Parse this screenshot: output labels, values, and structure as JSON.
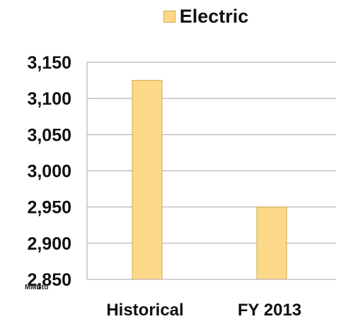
{
  "chart_data": {
    "type": "bar",
    "categories": [
      "Historical",
      "FY 2013"
    ],
    "series": [
      {
        "name": "Electric",
        "values": [
          3125,
          2950
        ]
      }
    ],
    "y_ticks": [
      "3,150",
      "3,100",
      "3,050",
      "3,000",
      "2,950",
      "2,900",
      "2,850"
    ],
    "ylim": [
      2850,
      3150
    ],
    "y_unit": "MMBtu",
    "grid": true,
    "legend_position": "top",
    "colors": {
      "bar": "#FDD888",
      "bar_border": "#d3a94e",
      "grid": "#a6a6a6"
    }
  }
}
